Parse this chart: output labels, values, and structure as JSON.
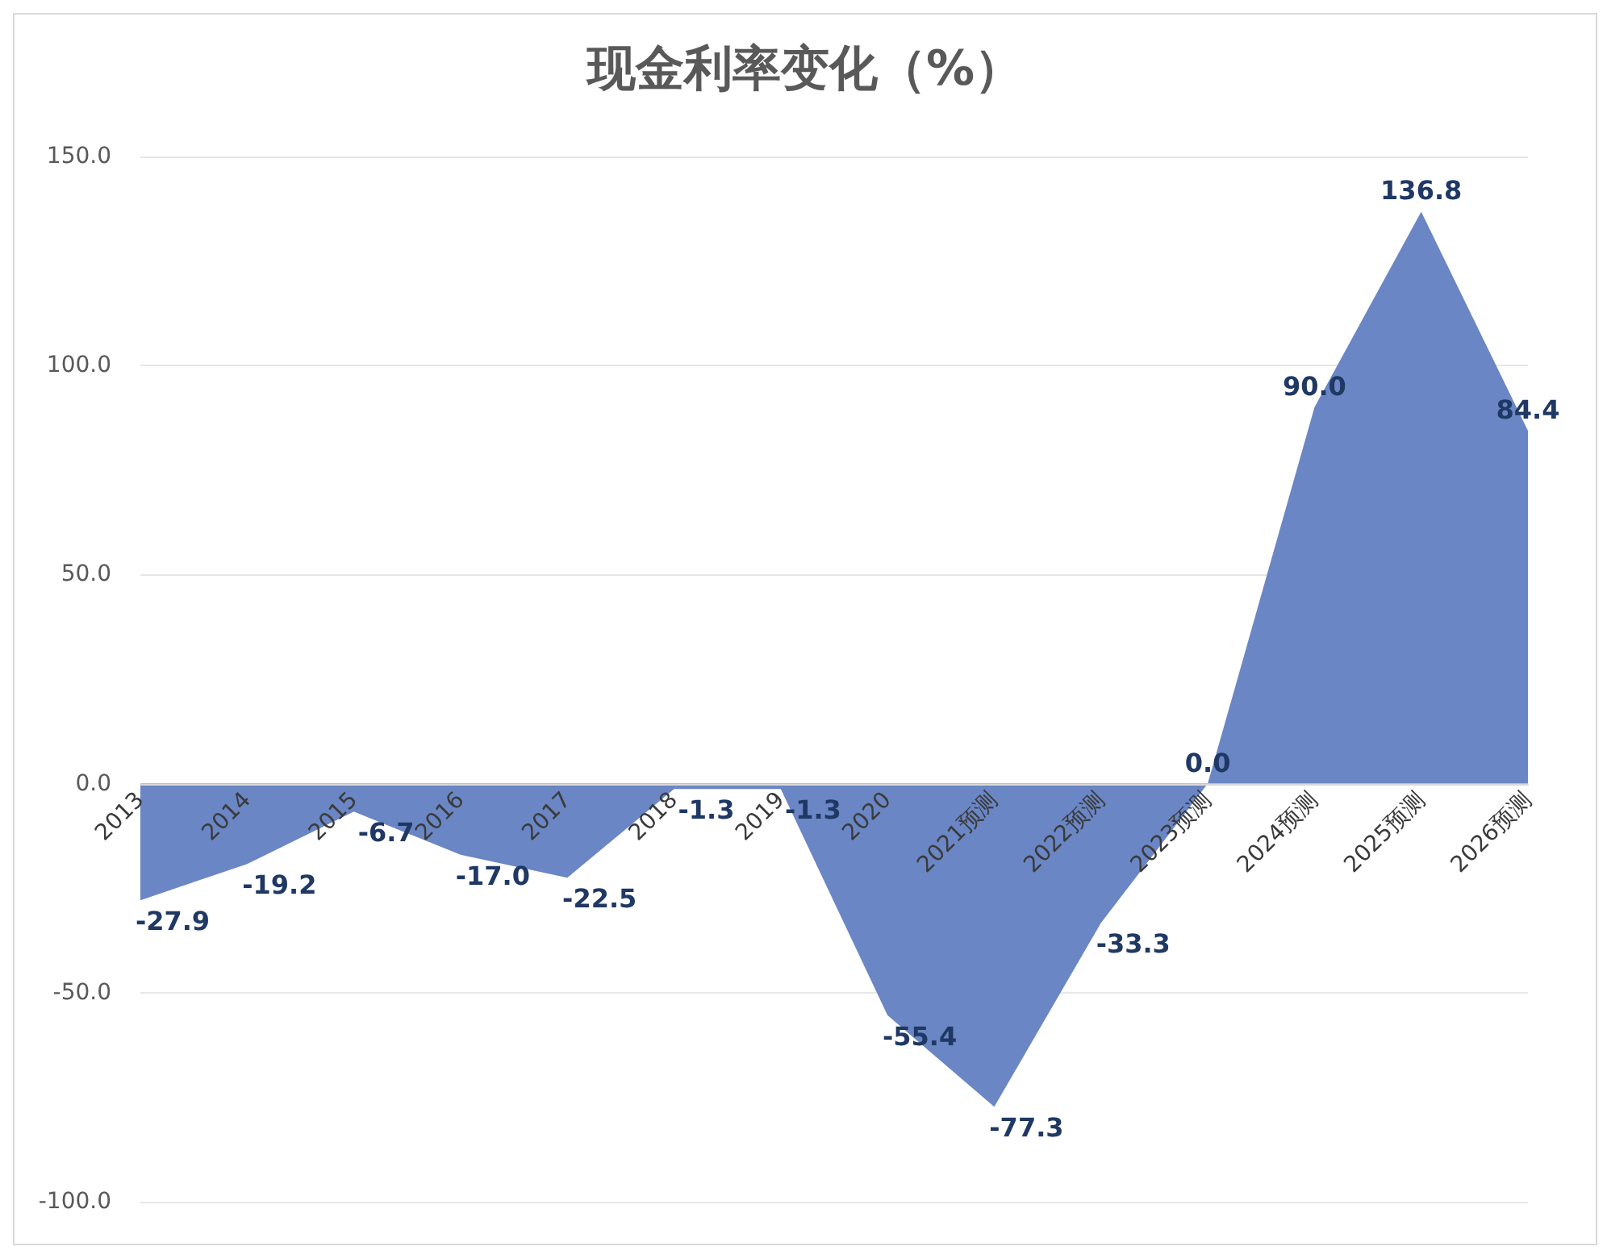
{
  "chart_data": {
    "type": "area",
    "title": "现金利率变化（%）",
    "categories": [
      "2013",
      "2014",
      "2015",
      "2016",
      "2017",
      "2018",
      "2019",
      "2020",
      "2021预测",
      "2022预测",
      "2023预测",
      "2024预测",
      "2025预测",
      "2026预测"
    ],
    "series": [
      {
        "color": "#6a86c4",
        "values": [
          -27.9,
          -19.2,
          -6.7,
          -17.0,
          -22.5,
          -1.3,
          -1.3,
          -55.4,
          -77.3,
          -33.3,
          0.0,
          90.0,
          136.8,
          84.4
        ],
        "value_labels": [
          "-27.9",
          "-19.2",
          "-6.7",
          "-17.0",
          "-22.5",
          "-1.3",
          "-1.3",
          "-55.4",
          "-77.3",
          "-33.3",
          "0.0",
          "90.0",
          "136.8",
          "84.4"
        ]
      }
    ],
    "ylim": [
      -100,
      150
    ],
    "yticks": [
      {
        "value": -100,
        "label": "-100.0"
      },
      {
        "value": -50,
        "label": "-50.0"
      },
      {
        "value": 0,
        "label": "0.0"
      },
      {
        "value": 50,
        "label": "50.0"
      },
      {
        "value": 100,
        "label": "100.0"
      },
      {
        "value": 150,
        "label": "150.0"
      }
    ],
    "grid": "y"
  }
}
